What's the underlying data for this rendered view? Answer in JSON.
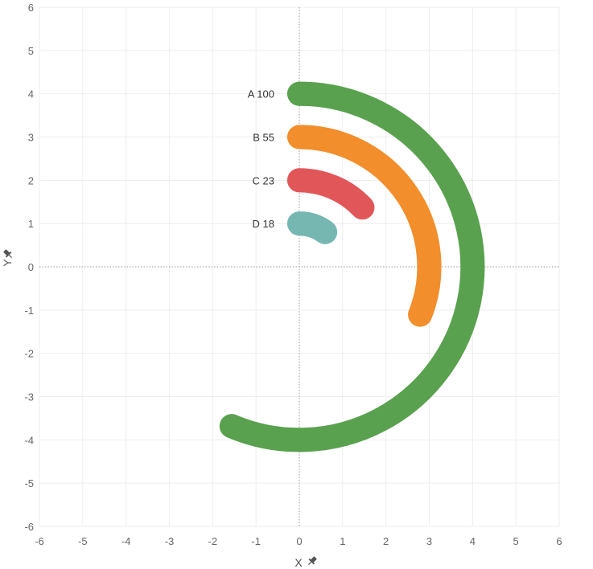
{
  "chart_data": {
    "type": "radial-bar",
    "x_axis": {
      "title": "X",
      "range": [
        -6,
        6
      ],
      "ticks": [
        -6,
        -5,
        -4,
        -3,
        -2,
        -1,
        0,
        1,
        2,
        3,
        4,
        5,
        6
      ]
    },
    "y_axis": {
      "title": "Y",
      "range": [
        -6,
        6
      ],
      "ticks": [
        6,
        5,
        4,
        3,
        2,
        1,
        0,
        -1,
        -2,
        -3,
        -4,
        -5,
        -6
      ]
    },
    "max_value": 100,
    "max_sweep_degrees": 203,
    "series": [
      {
        "name": "A",
        "value": 100,
        "label": "A 100",
        "radius": 4,
        "color": "#59a14f"
      },
      {
        "name": "B",
        "value": 55,
        "label": "B 55",
        "radius": 3,
        "color": "#f28e2b"
      },
      {
        "name": "C",
        "value": 23,
        "label": "C 23",
        "radius": 2,
        "color": "#e15759"
      },
      {
        "name": "D",
        "value": 18,
        "label": "D 18",
        "radius": 1,
        "color": "#76b7b2"
      }
    ],
    "grid": true,
    "axis_icons": {
      "x": "pin-icon",
      "y": "pin-icon"
    }
  }
}
